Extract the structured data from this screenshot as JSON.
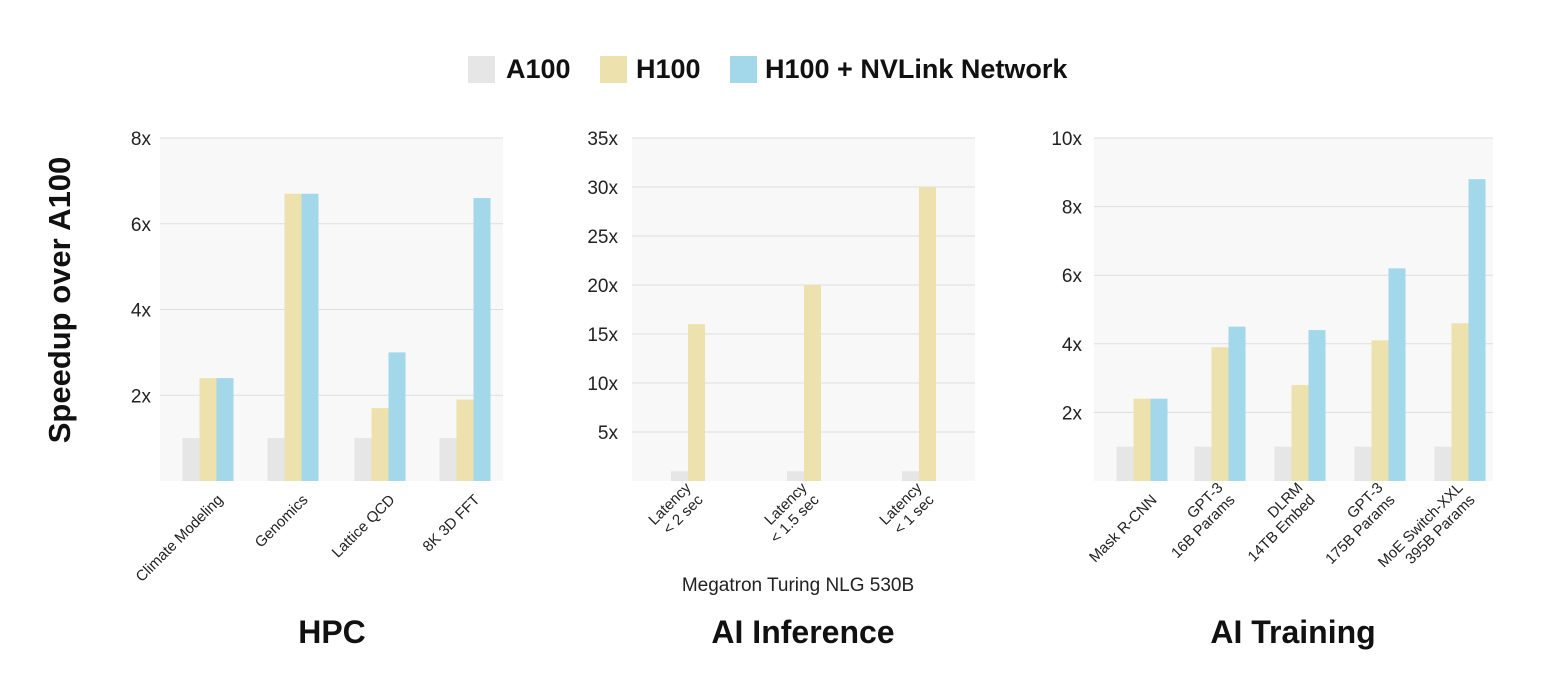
{
  "ylabel": "Speedup over A100",
  "legend": [
    {
      "label": "A100",
      "color": "#e6e6e6"
    },
    {
      "label": "H100",
      "color": "#ede1ad"
    },
    {
      "label": "H100 + NVLink Network",
      "color": "#a3d8ea"
    }
  ],
  "chart_data": [
    {
      "type": "bar",
      "title": "HPC",
      "xlabel": "",
      "ylabel": "Speedup over A100",
      "ylim": [
        0,
        8
      ],
      "ticks": [
        2,
        4,
        6,
        8
      ],
      "tick_labels": [
        "2x",
        "4x",
        "6x",
        "8x"
      ],
      "grid": true,
      "categories": [
        [
          "Climate Modeling"
        ],
        [
          "Genomics"
        ],
        [
          "Lattice QCD"
        ],
        [
          "8K 3D FFT"
        ]
      ],
      "series": [
        {
          "name": "A100",
          "values": [
            1,
            1,
            1,
            1
          ]
        },
        {
          "name": "H100",
          "values": [
            2.4,
            6.7,
            1.7,
            1.9
          ]
        },
        {
          "name": "H100 + NVLink Network",
          "values": [
            2.4,
            6.7,
            3.0,
            6.6
          ]
        }
      ]
    },
    {
      "type": "bar",
      "title": "AI Inference",
      "xlabel": "Megatron Turing NLG 530B",
      "ylabel": "Speedup over A100",
      "ylim": [
        0,
        35
      ],
      "ticks": [
        5,
        10,
        15,
        20,
        25,
        30,
        35
      ],
      "tick_labels": [
        "5x",
        "10x",
        "15x",
        "20x",
        "25x",
        "30x",
        "35x"
      ],
      "grid": true,
      "categories": [
        [
          "Latency",
          "< 2 sec"
        ],
        [
          "Latency",
          "< 1.5 sec"
        ],
        [
          "Latency",
          "< 1 sec"
        ]
      ],
      "series": [
        {
          "name": "A100",
          "values": [
            1,
            1,
            1
          ]
        },
        {
          "name": "H100",
          "values": [
            16,
            20,
            30
          ]
        }
      ]
    },
    {
      "type": "bar",
      "title": "AI Training",
      "xlabel": "",
      "ylabel": "Speedup over A100",
      "ylim": [
        0,
        10
      ],
      "ticks": [
        2,
        4,
        6,
        8,
        10
      ],
      "tick_labels": [
        "2x",
        "4x",
        "6x",
        "8x",
        "10x"
      ],
      "grid": true,
      "categories": [
        [
          "Mask R-CNN"
        ],
        [
          "GPT-3",
          "16B Params"
        ],
        [
          "DLRM",
          "14TB Embed"
        ],
        [
          "GPT-3",
          "175B Params"
        ],
        [
          "MoE Switch-XXL",
          "395B Params"
        ]
      ],
      "series": [
        {
          "name": "A100",
          "values": [
            1,
            1,
            1,
            1,
            1
          ]
        },
        {
          "name": "H100",
          "values": [
            2.4,
            3.9,
            2.8,
            4.1,
            4.6
          ]
        },
        {
          "name": "H100 + NVLink Network",
          "values": [
            2.4,
            4.5,
            4.4,
            6.2,
            8.8
          ]
        }
      ]
    }
  ]
}
